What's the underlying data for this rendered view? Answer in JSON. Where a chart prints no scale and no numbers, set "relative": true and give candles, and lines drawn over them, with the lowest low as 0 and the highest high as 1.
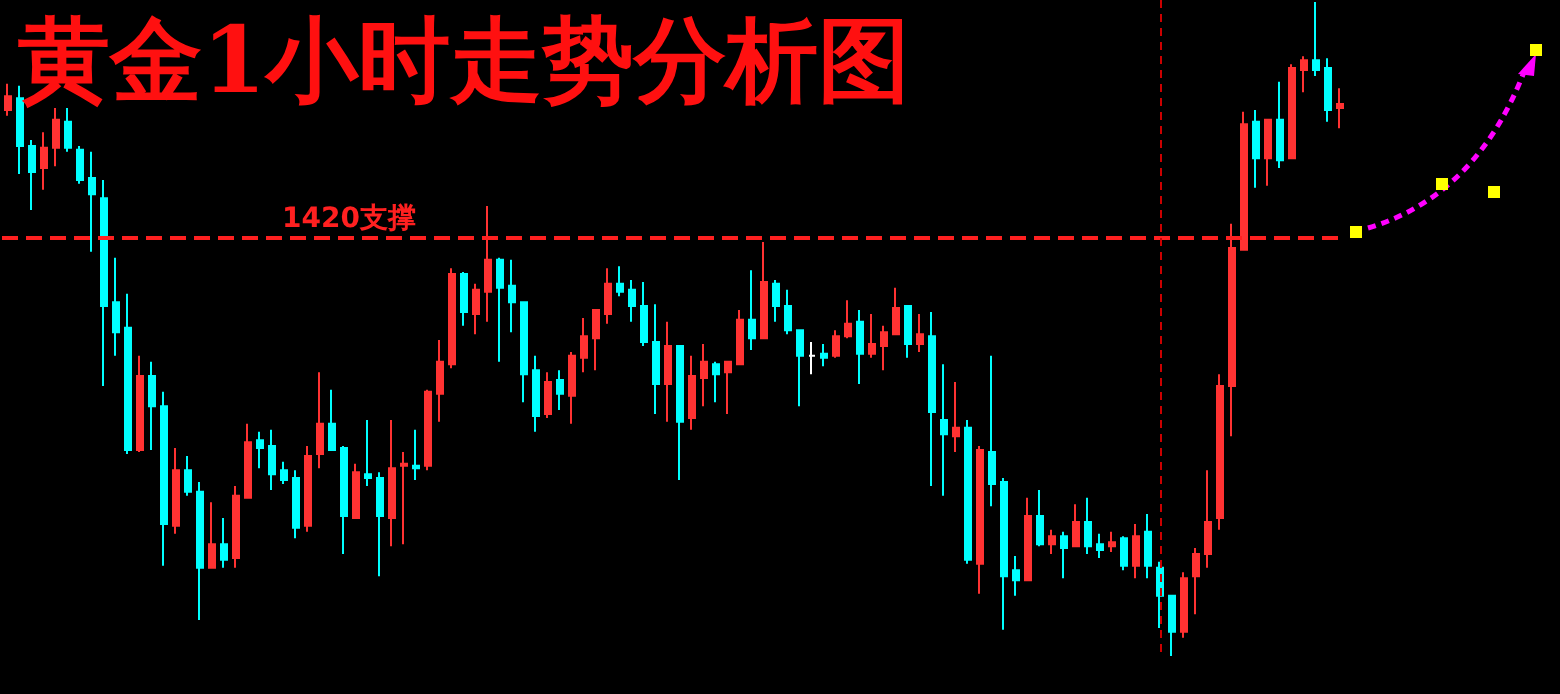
{
  "chart_data": {
    "type": "candlestick",
    "title": "黄金1小时走势分析图",
    "relative": true,
    "categories": [
      null,
      null,
      null,
      null,
      null,
      null,
      null,
      null,
      null,
      null,
      null,
      null,
      null,
      null,
      null,
      null,
      null,
      null,
      null,
      null,
      null,
      null,
      null,
      null,
      null,
      null,
      null,
      null,
      null,
      null,
      null,
      null,
      null,
      null,
      null,
      null,
      null,
      null,
      null,
      null,
      null,
      null,
      null,
      null,
      null,
      null,
      null,
      null,
      null,
      null,
      null,
      null,
      null,
      null,
      null,
      null,
      null,
      null,
      null,
      null,
      null,
      null,
      null,
      null,
      null,
      null,
      null,
      null,
      null,
      null,
      null,
      null,
      null,
      null,
      null,
      null,
      null,
      null,
      null,
      null,
      null,
      null,
      null,
      null,
      null,
      null,
      null,
      null,
      null,
      null,
      null,
      null,
      null,
      null,
      null,
      null,
      null,
      null,
      null,
      null,
      null,
      null,
      null,
      null,
      null,
      null,
      null,
      null,
      null,
      null,
      null,
      null
    ],
    "ohlc": [
      [
        0.835,
        0.875,
        0.826,
        0.856
      ],
      [
        0.853,
        0.872,
        0.737,
        0.78
      ],
      [
        0.78,
        0.789,
        0.682,
        0.74
      ],
      [
        0.746,
        0.801,
        0.713,
        0.777
      ],
      [
        0.777,
        0.838,
        0.749,
        0.82
      ],
      [
        0.817,
        0.838,
        0.771,
        0.777
      ],
      [
        0.774,
        0.78,
        0.722,
        0.728
      ],
      [
        0.731,
        0.771,
        0.618,
        0.706
      ],
      [
        0.7,
        0.728,
        0.413,
        0.535
      ],
      [
        0.541,
        0.609,
        0.459,
        0.495
      ],
      [
        0.502,
        0.554,
        0.309,
        0.315
      ],
      [
        0.315,
        0.459,
        0.312,
        0.428
      ],
      [
        0.428,
        0.45,
        0.315,
        0.382
      ],
      [
        0.382,
        0.404,
        0.138,
        0.202
      ],
      [
        0.199,
        0.318,
        0.187,
        0.284
      ],
      [
        0.284,
        0.306,
        0.245,
        0.251
      ],
      [
        0.251,
        0.266,
        0.055,
        0.135
      ],
      [
        0.135,
        0.235,
        0.135,
        0.171
      ],
      [
        0.171,
        0.211,
        0.135,
        0.147
      ],
      [
        0.15,
        0.26,
        0.135,
        0.245
      ],
      [
        0.242,
        0.355,
        0.242,
        0.327
      ],
      [
        0.33,
        0.343,
        0.287,
        0.318
      ],
      [
        0.321,
        0.346,
        0.254,
        0.278
      ],
      [
        0.284,
        0.297,
        0.263,
        0.269
      ],
      [
        0.272,
        0.284,
        0.18,
        0.196
      ],
      [
        0.199,
        0.321,
        0.19,
        0.306
      ],
      [
        0.309,
        0.434,
        0.287,
        0.355
      ],
      [
        0.355,
        0.407,
        0.315,
        0.315
      ],
      [
        0.318,
        0.321,
        0.156,
        0.214
      ],
      [
        0.211,
        0.294,
        0.211,
        0.281
      ],
      [
        0.278,
        0.361,
        0.26,
        0.272
      ],
      [
        0.272,
        0.281,
        0.122,
        0.214
      ],
      [
        0.211,
        0.361,
        0.168,
        0.287
      ],
      [
        0.291,
        0.312,
        0.171,
        0.294
      ],
      [
        0.291,
        0.346,
        0.269,
        0.287
      ],
      [
        0.291,
        0.407,
        0.284,
        0.404
      ],
      [
        0.401,
        0.483,
        0.358,
        0.45
      ],
      [
        0.446,
        0.593,
        0.44,
        0.584
      ],
      [
        0.584,
        0.587,
        0.505,
        0.526
      ],
      [
        0.523,
        0.569,
        0.492,
        0.56
      ],
      [
        0.557,
        0.688,
        0.511,
        0.606
      ],
      [
        0.606,
        0.609,
        0.45,
        0.563
      ],
      [
        0.566,
        0.606,
        0.495,
        0.541
      ],
      [
        0.541,
        0.541,
        0.388,
        0.431
      ],
      [
        0.437,
        0.459,
        0.343,
        0.367
      ],
      [
        0.37,
        0.434,
        0.364,
        0.419
      ],
      [
        0.422,
        0.437,
        0.376,
        0.401
      ],
      [
        0.398,
        0.465,
        0.355,
        0.459
      ],
      [
        0.456,
        0.517,
        0.434,
        0.489
      ],
      [
        0.486,
        0.529,
        0.437,
        0.529
      ],
      [
        0.523,
        0.593,
        0.508,
        0.569
      ],
      [
        0.569,
        0.596,
        0.55,
        0.557
      ],
      [
        0.56,
        0.575,
        0.511,
        0.535
      ],
      [
        0.535,
        0.572,
        0.474,
        0.48
      ],
      [
        0.48,
        0.538,
        0.37,
        0.416
      ],
      [
        0.416,
        0.511,
        0.358,
        0.474
      ],
      [
        0.474,
        0.474,
        0.269,
        0.358
      ],
      [
        0.364,
        0.459,
        0.346,
        0.428
      ],
      [
        0.425,
        0.477,
        0.382,
        0.45
      ],
      [
        0.446,
        0.45,
        0.388,
        0.431
      ],
      [
        0.434,
        0.45,
        0.37,
        0.45
      ],
      [
        0.446,
        0.529,
        0.446,
        0.514
      ],
      [
        0.514,
        0.59,
        0.468,
        0.486
      ],
      [
        0.486,
        0.633,
        0.486,
        0.572
      ],
      [
        0.569,
        0.575,
        0.511,
        0.535
      ],
      [
        0.535,
        0.56,
        0.492,
        0.498
      ],
      [
        0.498,
        0.498,
        0.382,
        0.459
      ],
      [
        0.459,
        0.48,
        0.431,
        0.459
      ],
      [
        0.462,
        0.477,
        0.443,
        0.456
      ],
      [
        0.459,
        0.498,
        0.456,
        0.489
      ],
      [
        0.489,
        0.544,
        0.486,
        0.508
      ],
      [
        0.511,
        0.529,
        0.416,
        0.462
      ],
      [
        0.462,
        0.523,
        0.456,
        0.477
      ],
      [
        0.474,
        0.505,
        0.437,
        0.495
      ],
      [
        0.492,
        0.563,
        0.492,
        0.532
      ],
      [
        0.535,
        0.535,
        0.456,
        0.477
      ],
      [
        0.477,
        0.523,
        0.465,
        0.492
      ],
      [
        0.489,
        0.526,
        0.26,
        0.373
      ],
      [
        0.361,
        0.446,
        0.245,
        0.339
      ],
      [
        0.336,
        0.419,
        0.312,
        0.349
      ],
      [
        0.349,
        0.361,
        0.141,
        0.147
      ],
      [
        0.141,
        0.321,
        0.095,
        0.315
      ],
      [
        0.312,
        0.459,
        0.229,
        0.263
      ],
      [
        0.266,
        0.272,
        0.04,
        0.122
      ],
      [
        0.131,
        0.153,
        0.092,
        0.116
      ],
      [
        0.116,
        0.242,
        0.116,
        0.214
      ],
      [
        0.214,
        0.254,
        0.168,
        0.171
      ],
      [
        0.171,
        0.193,
        0.156,
        0.183
      ],
      [
        0.183,
        0.19,
        0.119,
        0.165
      ],
      [
        0.168,
        0.232,
        0.168,
        0.205
      ],
      [
        0.205,
        0.242,
        0.156,
        0.168
      ],
      [
        0.171,
        0.187,
        0.15,
        0.162
      ],
      [
        0.168,
        0.19,
        0.159,
        0.174
      ],
      [
        0.18,
        0.183,
        0.131,
        0.138
      ],
      [
        0.138,
        0.202,
        0.119,
        0.183
      ],
      [
        0.19,
        0.217,
        0.119,
        0.138
      ],
      [
        0.135,
        0.144,
        0.043,
        0.092
      ],
      [
        0.092,
        0.092,
        0,
        0.037
      ],
      [
        0.037,
        0.128,
        0.028,
        0.119
      ],
      [
        0.122,
        0.165,
        0.064,
        0.156
      ],
      [
        0.156,
        0.284,
        0.135,
        0.205
      ],
      [
        0.211,
        0.431,
        0.193,
        0.413
      ],
      [
        0.413,
        0.661,
        0.336,
        0.624
      ],
      [
        0.621,
        0.832,
        0.621,
        0.813
      ],
      [
        0.817,
        0.835,
        0.716,
        0.761
      ],
      [
        0.761,
        0.82,
        0.719,
        0.82
      ],
      [
        0.82,
        0.878,
        0.746,
        0.758
      ],
      [
        0.761,
        0.905,
        0.761,
        0.899
      ],
      [
        0.896,
        0.917,
        0.862,
        0.911
      ],
      [
        0.911,
        1,
        0.887,
        0.896
      ],
      [
        0.899,
        0.914,
        0.817,
        0.835
      ],
      [
        0.838,
        0.868,
        0.807,
        0.844
      ]
    ],
    "colors": [
      "#ff3232",
      "#00ffff",
      "#00ffff",
      "#ff3232",
      "#ff3232",
      "#00ffff",
      "#00ffff",
      "#00ffff",
      "#00ffff",
      "#00ffff",
      "#00ffff",
      "#ff3232",
      "#00ffff",
      "#00ffff",
      "#ff3232",
      "#00ffff",
      "#00ffff",
      "#ff3232",
      "#00ffff",
      "#ff3232",
      "#ff3232",
      "#00ffff",
      "#00ffff",
      "#00ffff",
      "#00ffff",
      "#ff3232",
      "#ff3232",
      "#00ffff",
      "#00ffff",
      "#ff3232",
      "#00ffff",
      "#00ffff",
      "#ff3232",
      "#ff3232",
      "#00ffff",
      "#ff3232",
      "#ff3232",
      "#ff3232",
      "#00ffff",
      "#ff3232",
      "#ff3232",
      "#00ffff",
      "#00ffff",
      "#00ffff",
      "#00ffff",
      "#ff3232",
      "#00ffff",
      "#ff3232",
      "#ff3232",
      "#ff3232",
      "#ff3232",
      "#00ffff",
      "#00ffff",
      "#00ffff",
      "#00ffff",
      "#ff3232",
      "#00ffff",
      "#ff3232",
      "#ff3232",
      "#00ffff",
      "#ff3232",
      "#ff3232",
      "#00ffff",
      "#ff3232",
      "#00ffff",
      "#00ffff",
      "#00ffff",
      "#ffffff",
      "#00ffff",
      "#ff3232",
      "#ff3232",
      "#00ffff",
      "#ff3232",
      "#ff3232",
      "#ff3232",
      "#00ffff",
      "#ff3232",
      "#00ffff",
      "#00ffff",
      "#ff3232",
      "#00ffff",
      "#ff3232",
      "#00ffff",
      "#00ffff",
      "#00ffff",
      "#ff3232",
      "#00ffff",
      "#ff3232",
      "#00ffff",
      "#ff3232",
      "#00ffff",
      "#00ffff",
      "#ff3232",
      "#00ffff",
      "#ff3232",
      "#00ffff",
      "#00ffff",
      "#00ffff",
      "#ff3232",
      "#ff3232",
      "#ff3232",
      "#ff3232",
      "#ff3232",
      "#ff3232",
      "#00ffff",
      "#ff3232",
      "#00ffff",
      "#ff3232",
      "#ff3232",
      "#00ffff",
      "#00ffff",
      "#ff3232"
    ],
    "ref_lines": [
      {
        "axis": "y",
        "value": 0.639,
        "label": "1420支撑",
        "color": "#ff2020",
        "line_style": "dashed"
      }
    ]
  }
}
